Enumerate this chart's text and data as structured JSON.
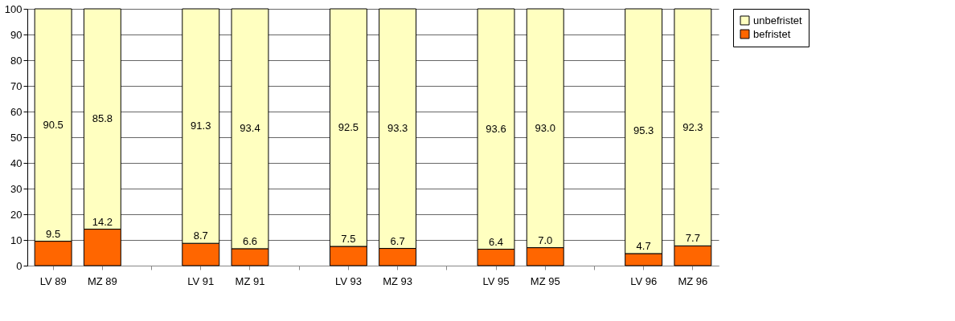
{
  "chart_data": {
    "type": "bar",
    "stacked": true,
    "categories": [
      "LV 89",
      "MZ 89",
      null,
      "LV 91",
      "MZ 91",
      null,
      "LV 93",
      "MZ 93",
      null,
      "LV 95",
      "MZ 95",
      null,
      "LV 96",
      "MZ 96"
    ],
    "series": [
      {
        "name": "befristet",
        "color": "#ff6600",
        "values": [
          9.5,
          14.2,
          null,
          8.7,
          6.6,
          null,
          7.5,
          6.7,
          null,
          6.4,
          7.0,
          null,
          4.7,
          7.7
        ],
        "value_labels": [
          "9.5",
          "14.2",
          null,
          "8.7",
          "6.6",
          null,
          "7.5",
          "6.7",
          null,
          "6.4",
          "7.0",
          null,
          "4.7",
          "7.7"
        ]
      },
      {
        "name": "unbefristet",
        "color": "#ffffc0",
        "values": [
          90.5,
          85.8,
          null,
          91.3,
          93.4,
          null,
          92.5,
          93.3,
          null,
          93.6,
          93.0,
          null,
          95.3,
          92.3
        ],
        "value_labels": [
          "90.5",
          "85.8",
          null,
          "91.3",
          "93.4",
          null,
          "92.5",
          "93.3",
          null,
          "93.6",
          "93.0",
          null,
          "95.3",
          "92.3"
        ]
      }
    ],
    "ylim": [
      0,
      100
    ],
    "yticks": [
      0,
      10,
      20,
      30,
      40,
      50,
      60,
      70,
      80,
      90,
      100
    ],
    "grid": "y",
    "legend": "right"
  }
}
